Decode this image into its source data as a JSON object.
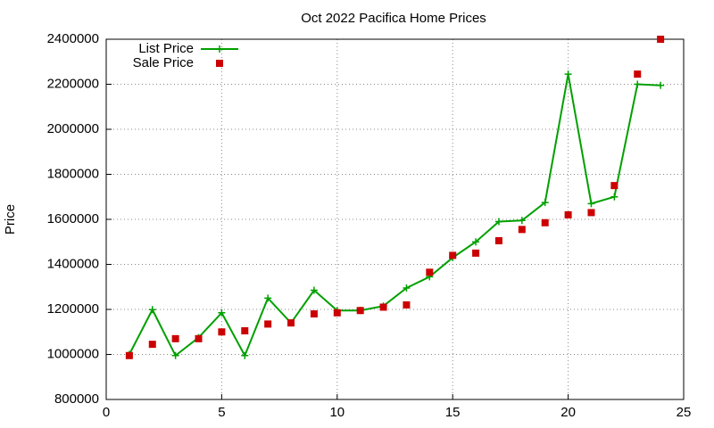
{
  "chart_data": {
    "type": "line",
    "title": "Oct 2022 Pacifica Home Prices",
    "y_label": "Price",
    "x": [
      1,
      2,
      3,
      4,
      5,
      6,
      7,
      8,
      9,
      10,
      11,
      12,
      13,
      14,
      15,
      16,
      17,
      18,
      19,
      20,
      21,
      22,
      23,
      24
    ],
    "series": [
      {
        "name": "List Price",
        "color": "#00a000",
        "style": "linespoints",
        "values": [
          1000000,
          1199000,
          995000,
          1075000,
          1185000,
          995000,
          1250000,
          1140000,
          1285000,
          1195000,
          1195000,
          1215000,
          1295000,
          1345000,
          1430000,
          1500000,
          1590000,
          1595000,
          1675000,
          2245000,
          1670000,
          1700000,
          2200000,
          2195000
        ]
      },
      {
        "name": "Sale Price",
        "color": "#cc0000",
        "style": "points",
        "values": [
          995000,
          1045000,
          1070000,
          1070000,
          1100000,
          1105000,
          1135000,
          1140000,
          1180000,
          1185000,
          1195000,
          1210000,
          1220000,
          1365000,
          1440000,
          1450000,
          1505000,
          1555000,
          1585000,
          1620000,
          1630000,
          1750000,
          2245000,
          2400000
        ]
      }
    ],
    "xlim": [
      0,
      25
    ],
    "xticks": [
      0,
      5,
      10,
      15,
      20,
      25
    ],
    "ylim": [
      800000,
      2400000
    ],
    "yticks": [
      800000,
      1000000,
      1200000,
      1400000,
      1600000,
      1800000,
      2000000,
      2200000,
      2400000
    ],
    "grid": true,
    "legend": "top-left"
  }
}
